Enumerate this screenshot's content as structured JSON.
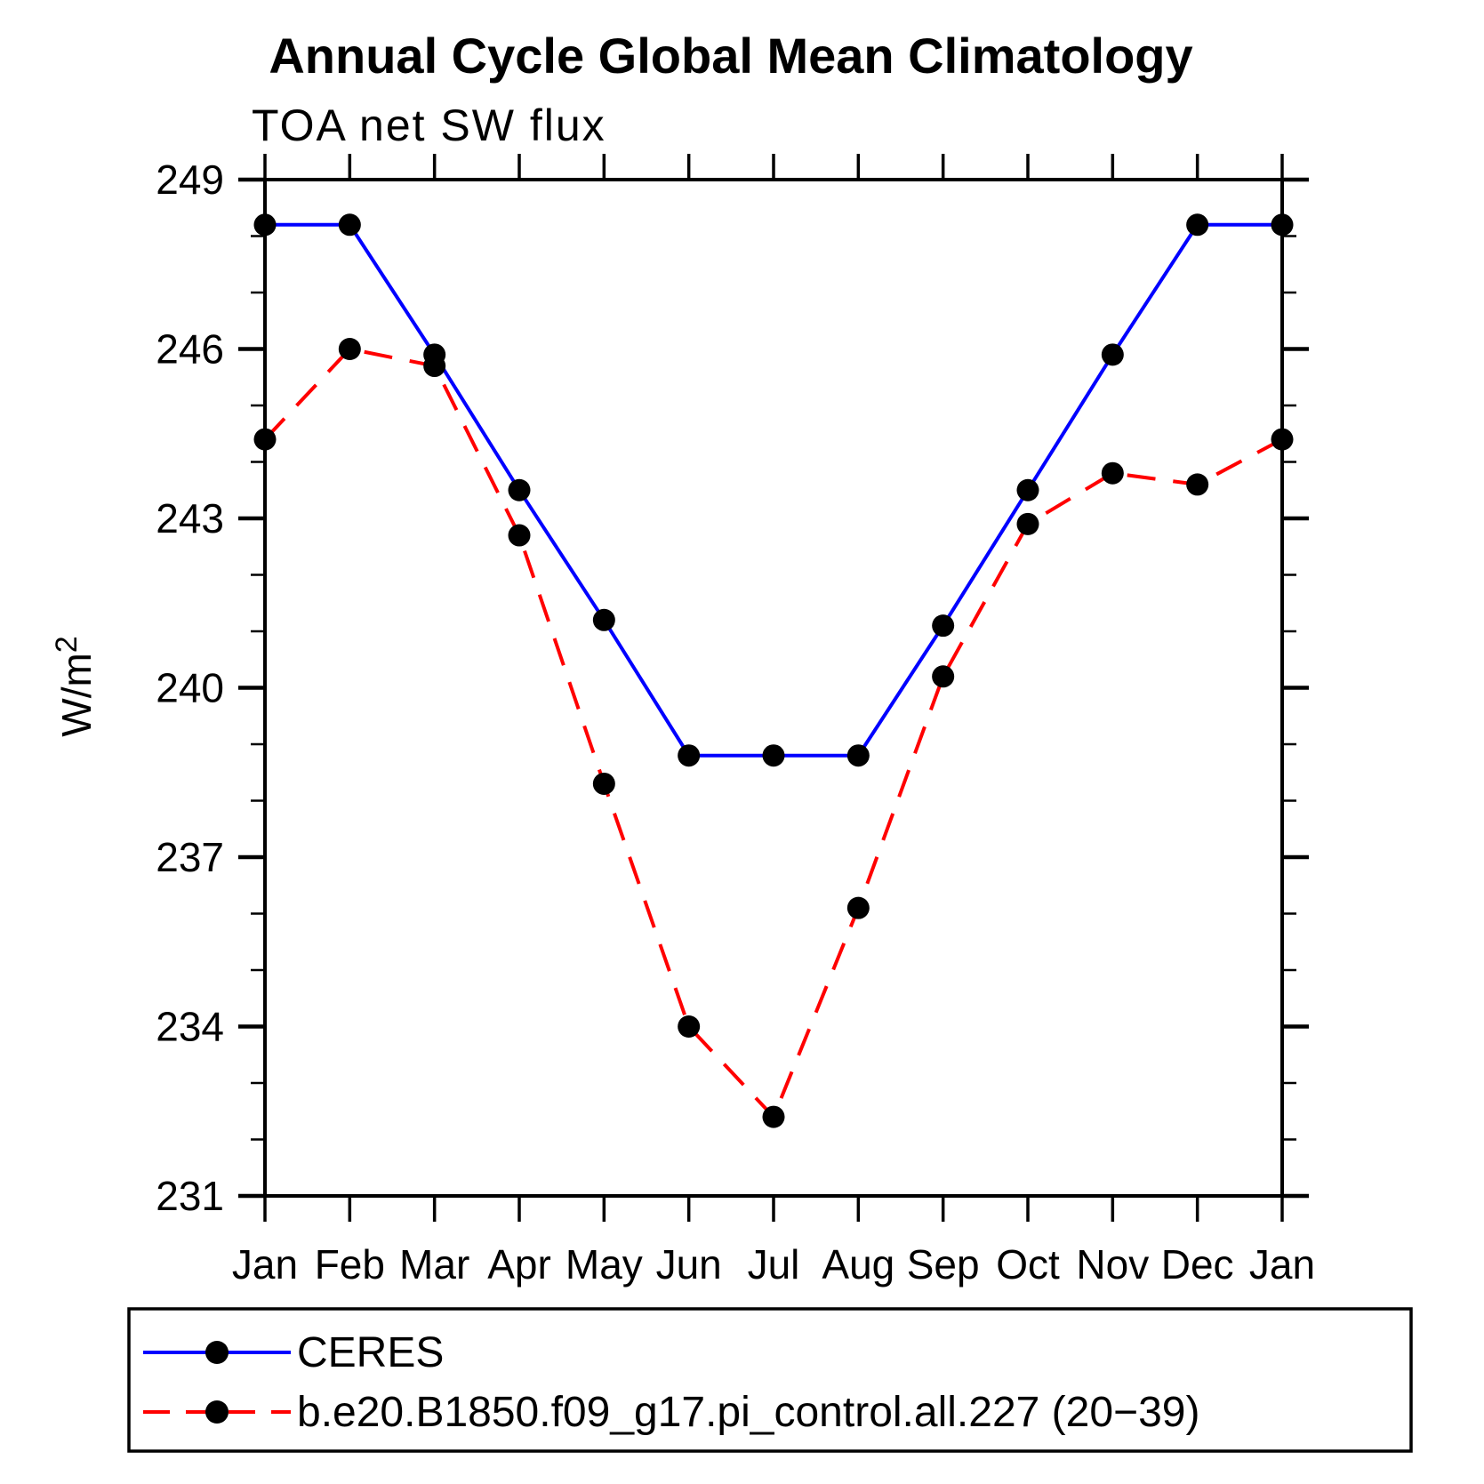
{
  "title": "Annual Cycle Global Mean Climatology",
  "chart_data": {
    "type": "line",
    "subtitle": "TOA net SW flux",
    "ylabel": "W/m²",
    "categories": [
      "Jan",
      "Feb",
      "Mar",
      "Apr",
      "May",
      "Jun",
      "Jul",
      "Aug",
      "Sep",
      "Oct",
      "Nov",
      "Dec",
      "Jan"
    ],
    "ylim": [
      231,
      249
    ],
    "ytick_major": [
      231,
      234,
      237,
      240,
      243,
      246,
      249
    ],
    "ytick_minor_step": 1,
    "grid": false,
    "legend_position": "bottom-left-box",
    "marker_color": "#000000",
    "series": [
      {
        "name": "CERES",
        "color": "#0000ff",
        "style": "solid",
        "marker": "circle",
        "values": [
          248.2,
          248.2,
          245.9,
          243.5,
          241.2,
          238.8,
          238.8,
          238.8,
          241.1,
          243.5,
          245.9,
          248.2,
          248.2
        ]
      },
      {
        "name": "b.e20.B1850.f09_g17.pi_control.all.227 (20−39)",
        "color": "#ff0000",
        "style": "dashed",
        "marker": "circle",
        "values": [
          244.4,
          246.0,
          245.7,
          242.7,
          238.3,
          234.0,
          232.4,
          236.1,
          240.2,
          242.9,
          243.8,
          243.6,
          244.4
        ]
      }
    ]
  }
}
